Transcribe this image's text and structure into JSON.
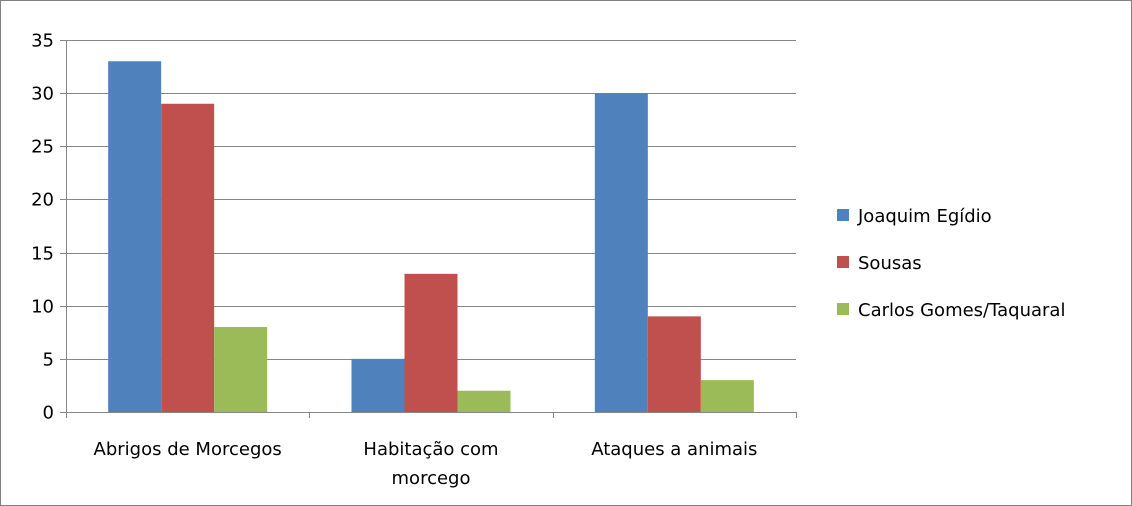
{
  "chart_data": {
    "type": "bar",
    "categories": [
      "Abrigos de Morcegos",
      "Habitação com morcego",
      "Ataques a animais"
    ],
    "category_lines": [
      [
        "Abrigos de Morcegos"
      ],
      [
        "Habitação com",
        "morcego"
      ],
      [
        "Ataques a animais"
      ]
    ],
    "series": [
      {
        "name": "Joaquim Egídio",
        "values": [
          33,
          5,
          30
        ],
        "color": "#4f81bd"
      },
      {
        "name": "Sousas",
        "values": [
          29,
          13,
          9
        ],
        "color": "#c0504d"
      },
      {
        "name": "Carlos Gomes/Taquaral",
        "values": [
          8,
          2,
          3
        ],
        "color": "#9bbb59"
      }
    ],
    "ylim": [
      0,
      35
    ],
    "yticks": [
      0,
      5,
      10,
      15,
      20,
      25,
      30,
      35
    ],
    "grid": true,
    "legend_position": "right",
    "title": "",
    "xlabel": "",
    "ylabel": ""
  }
}
